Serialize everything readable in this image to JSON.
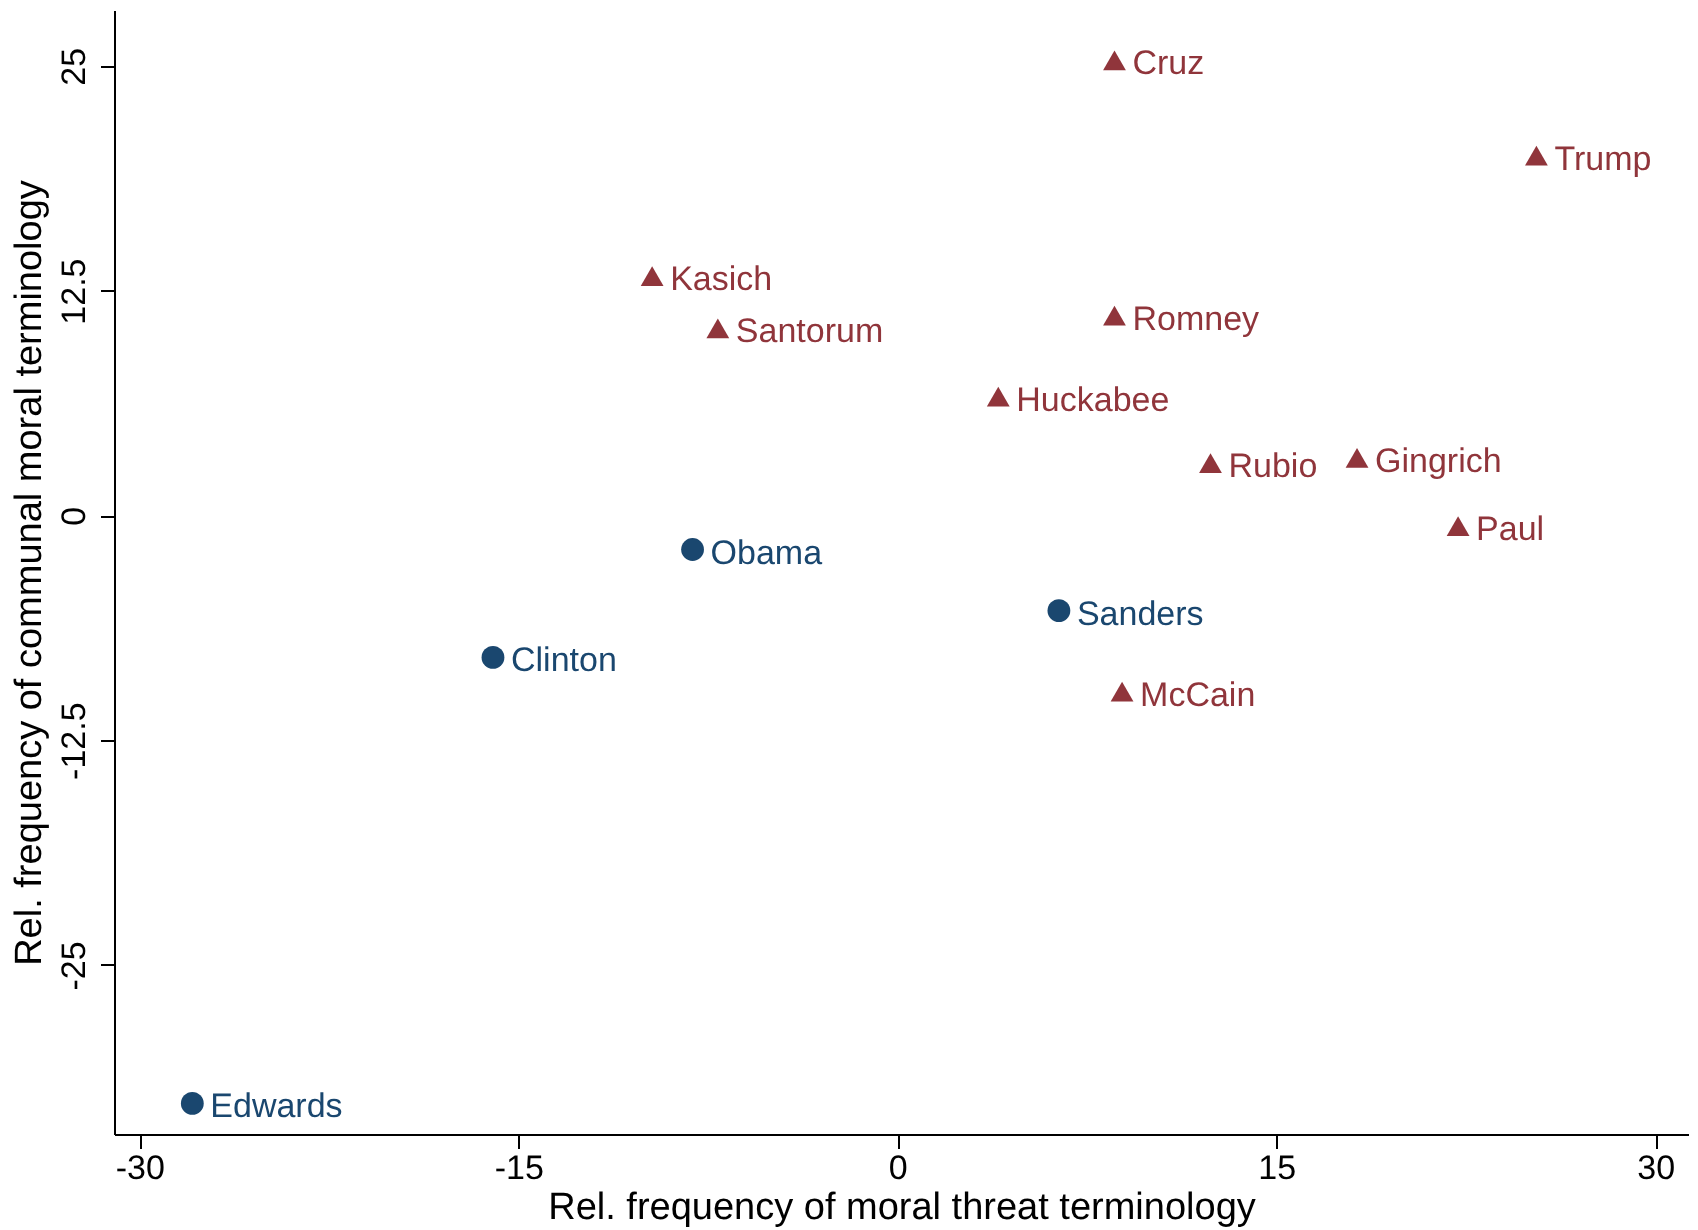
{
  "chart_data": {
    "type": "scatter",
    "xlabel": "Rel. frequency of moral threat terminology",
    "ylabel": "Rel. frequency of communal moral terminology",
    "xlim": [
      -31,
      31.3
    ],
    "ylim": [
      -34.4,
      28.1
    ],
    "xticks": [
      -30,
      -15,
      0,
      15,
      30
    ],
    "yticks": [
      -25,
      -12.5,
      0,
      12.5,
      25
    ],
    "grid": false,
    "series": [
      {
        "color": "#1a476f",
        "marker": "circle",
        "x": [
          -8.1,
          6.4,
          -16.0,
          -27.9
        ],
        "values": [
          -1.9,
          -5.3,
          -7.9,
          -32.7
        ]
      },
      {
        "color": "#90353b",
        "marker": "triangle",
        "x": [
          8.6,
          25.3,
          -9.7,
          -7.1,
          8.6,
          4.0,
          12.4,
          18.2,
          22.2,
          8.9
        ],
        "values": [
          25.3,
          20.0,
          13.3,
          10.4,
          11.1,
          6.6,
          2.9,
          3.2,
          -0.6,
          -9.8
        ]
      }
    ],
    "annotations": [
      {
        "text": "Obama",
        "x": -8.1,
        "y": -1.9
      },
      {
        "text": "Sanders",
        "x": 6.4,
        "y": -5.3
      },
      {
        "text": "Clinton",
        "x": -16.0,
        "y": -7.9
      },
      {
        "text": "Edwards",
        "x": -27.9,
        "y": -32.7
      },
      {
        "text": "Cruz",
        "x": 8.6,
        "y": 25.3
      },
      {
        "text": "Trump",
        "x": 25.3,
        "y": 20.0
      },
      {
        "text": "Kasich",
        "x": -9.7,
        "y": 13.3
      },
      {
        "text": "Santorum",
        "x": -7.1,
        "y": 10.4
      },
      {
        "text": "Romney",
        "x": 8.6,
        "y": 11.1
      },
      {
        "text": "Huckabee",
        "x": 4.0,
        "y": 6.6
      },
      {
        "text": "Rubio",
        "x": 12.4,
        "y": 2.9
      },
      {
        "text": "Gingrich",
        "x": 18.2,
        "y": 3.2
      },
      {
        "text": "Paul",
        "x": 22.2,
        "y": -0.6
      },
      {
        "text": "McCain",
        "x": 8.9,
        "y": -9.8
      }
    ]
  }
}
